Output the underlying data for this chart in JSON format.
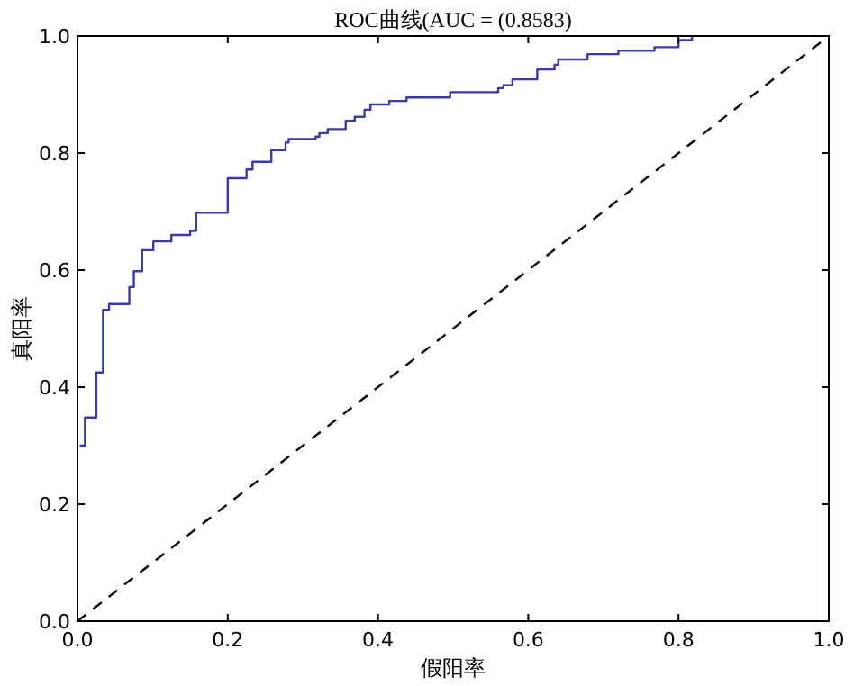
{
  "chart_data": {
    "type": "step",
    "title": "ROC曲线(AUC = (0.8583)",
    "xlabel": "假阳率",
    "ylabel": "真阳率",
    "xlim": [
      0,
      1
    ],
    "ylim": [
      0,
      1
    ],
    "xticks": [
      {
        "value": 0,
        "label": "0.0"
      },
      0.2,
      0.4,
      0.6,
      0.8,
      {
        "value": 1,
        "label": "1.0"
      }
    ],
    "yticks": [
      {
        "value": 0,
        "label": "0.0"
      },
      0.2,
      0.4,
      0.6,
      0.8,
      {
        "value": 1,
        "label": "1.0"
      }
    ],
    "grid": false,
    "series": [
      {
        "color": "#3a3aa8",
        "line_style": "solid",
        "x": [
          0.003,
          0.01,
          0.025,
          0.034,
          0.042,
          0.069,
          0.075,
          0.086,
          0.101,
          0.125,
          0.15,
          0.158,
          0.2,
          0.225,
          0.233,
          0.258,
          0.277,
          0.281,
          0.317,
          0.322,
          0.333,
          0.357,
          0.369,
          0.382,
          0.39,
          0.415,
          0.438,
          0.496,
          0.56,
          0.567,
          0.579,
          0.612,
          0.635,
          0.64,
          0.679,
          0.72,
          0.768,
          0.8,
          0.818
        ],
        "values": [
          0.3,
          0.348,
          0.425,
          0.532,
          0.542,
          0.571,
          0.598,
          0.634,
          0.649,
          0.66,
          0.667,
          0.698,
          0.757,
          0.772,
          0.785,
          0.805,
          0.818,
          0.824,
          0.828,
          0.834,
          0.841,
          0.855,
          0.862,
          0.874,
          0.883,
          0.889,
          0.895,
          0.904,
          0.911,
          0.916,
          0.926,
          0.943,
          0.951,
          0.96,
          0.969,
          0.975,
          0.981,
          0.993,
          1
        ]
      },
      {
        "type": "line",
        "color": "#000000",
        "line_style": "dashed",
        "x": [
          0,
          1
        ],
        "values": [
          0,
          1
        ]
      }
    ]
  }
}
